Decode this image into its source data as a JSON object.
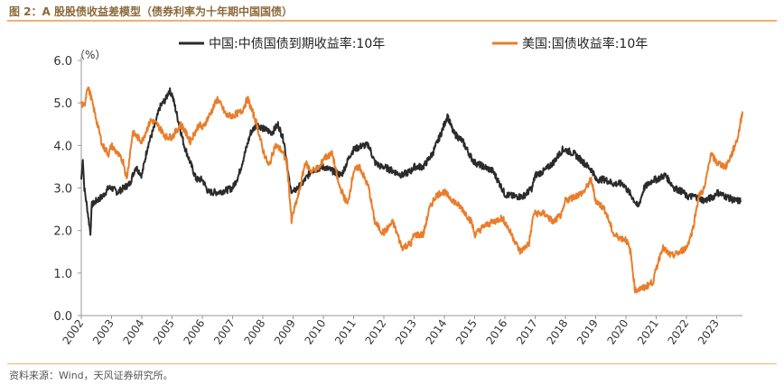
{
  "figure": {
    "title": "图 2：A 股股债收益差模型（债券利率为十年期中国国债）",
    "source": "资料来源：Wind，天风证券研究所。"
  },
  "chart_data": {
    "type": "line",
    "unit_label": "（%）",
    "ylim": [
      0,
      6
    ],
    "yticks": [
      "0.0",
      "1.0",
      "2.0",
      "3.0",
      "4.0",
      "5.0",
      "6.0"
    ],
    "xlim": [
      2002,
      2023.85
    ],
    "xticks": [
      "2002",
      "2003",
      "2004",
      "2005",
      "2006",
      "2007",
      "2008",
      "2009",
      "2010",
      "2011",
      "2012",
      "2013",
      "2014",
      "2015",
      "2016",
      "2017",
      "2018",
      "2019",
      "2020",
      "2021",
      "2022",
      "2023"
    ],
    "legend_position": "top",
    "grid": false,
    "series": [
      {
        "name": "中国:中债国债到期收益率:10年",
        "color": "#2b2b2b",
        "x": [
          2002.0,
          2002.05,
          2002.1,
          2002.2,
          2002.3,
          2002.35,
          2002.5,
          2002.7,
          2002.9,
          2003.0,
          2003.2,
          2003.4,
          2003.6,
          2003.8,
          2004.0,
          2004.2,
          2004.4,
          2004.6,
          2004.8,
          2004.9,
          2005.0,
          2005.2,
          2005.4,
          2005.6,
          2005.8,
          2006.0,
          2006.2,
          2006.5,
          2006.8,
          2007.0,
          2007.2,
          2007.4,
          2007.6,
          2007.8,
          2008.0,
          2008.3,
          2008.5,
          2008.7,
          2008.9,
          2009.0,
          2009.3,
          2009.6,
          2010.0,
          2010.3,
          2010.6,
          2010.9,
          2011.0,
          2011.3,
          2011.5,
          2011.7,
          2011.9,
          2012.0,
          2012.3,
          2012.6,
          2012.9,
          2013.0,
          2013.3,
          2013.6,
          2013.9,
          2014.0,
          2014.1,
          2014.3,
          2014.6,
          2014.9,
          2015.0,
          2015.3,
          2015.6,
          2015.9,
          2016.0,
          2016.3,
          2016.6,
          2016.9,
          2017.0,
          2017.3,
          2017.6,
          2017.9,
          2018.0,
          2018.3,
          2018.6,
          2018.9,
          2019.0,
          2019.3,
          2019.6,
          2019.9,
          2020.0,
          2020.2,
          2020.4,
          2020.6,
          2020.9,
          2021.0,
          2021.3,
          2021.6,
          2021.9,
          2022.0,
          2022.3,
          2022.6,
          2022.9,
          2023.0,
          2023.3,
          2023.6,
          2023.8
        ],
        "y": [
          3.2,
          3.7,
          3.0,
          2.5,
          1.95,
          2.6,
          2.7,
          2.8,
          3.0,
          3.0,
          2.9,
          3.0,
          3.1,
          3.5,
          3.3,
          4.0,
          4.4,
          4.9,
          5.1,
          5.3,
          5.2,
          4.6,
          4.0,
          3.6,
          3.2,
          3.2,
          2.9,
          2.9,
          2.95,
          3.0,
          3.3,
          3.8,
          4.3,
          4.5,
          4.4,
          4.3,
          4.5,
          4.1,
          3.0,
          2.9,
          3.1,
          3.4,
          3.5,
          3.4,
          3.3,
          3.8,
          3.9,
          4.0,
          4.0,
          3.6,
          3.5,
          3.5,
          3.4,
          3.3,
          3.4,
          3.5,
          3.5,
          3.8,
          4.3,
          4.5,
          4.7,
          4.3,
          4.1,
          3.7,
          3.6,
          3.5,
          3.4,
          3.0,
          2.85,
          2.8,
          2.8,
          3.0,
          3.3,
          3.4,
          3.6,
          3.9,
          3.9,
          3.8,
          3.6,
          3.4,
          3.2,
          3.2,
          3.1,
          3.1,
          3.0,
          2.8,
          2.55,
          3.0,
          3.2,
          3.2,
          3.3,
          3.0,
          2.9,
          2.8,
          2.8,
          2.7,
          2.8,
          2.9,
          2.8,
          2.7,
          2.7
        ]
      },
      {
        "name": "美国:国债收益率:10年",
        "color": "#e87e2c",
        "x": [
          2002.0,
          2002.1,
          2002.2,
          2002.3,
          2002.5,
          2002.7,
          2002.9,
          2003.0,
          2003.2,
          2003.4,
          2003.5,
          2003.7,
          2004.0,
          2004.3,
          2004.5,
          2004.8,
          2005.0,
          2005.3,
          2005.6,
          2005.9,
          2006.0,
          2006.3,
          2006.5,
          2006.8,
          2007.0,
          2007.3,
          2007.5,
          2007.8,
          2008.0,
          2008.2,
          2008.4,
          2008.6,
          2008.8,
          2008.95,
          2009.0,
          2009.2,
          2009.4,
          2009.6,
          2009.9,
          2010.0,
          2010.3,
          2010.5,
          2010.8,
          2011.0,
          2011.2,
          2011.5,
          2011.7,
          2011.9,
          2012.0,
          2012.3,
          2012.6,
          2012.9,
          2013.0,
          2013.3,
          2013.5,
          2013.7,
          2013.9,
          2014.0,
          2014.3,
          2014.6,
          2014.9,
          2015.0,
          2015.3,
          2015.6,
          2015.9,
          2016.0,
          2016.3,
          2016.5,
          2016.8,
          2016.95,
          2017.0,
          2017.3,
          2017.6,
          2017.9,
          2018.0,
          2018.3,
          2018.6,
          2018.85,
          2019.0,
          2019.3,
          2019.6,
          2019.9,
          2020.0,
          2020.15,
          2020.3,
          2020.6,
          2020.9,
          2021.0,
          2021.2,
          2021.5,
          2021.8,
          2022.0,
          2022.2,
          2022.4,
          2022.6,
          2022.8,
          2023.0,
          2023.3,
          2023.5,
          2023.7,
          2023.85
        ],
        "y": [
          5.0,
          4.9,
          5.4,
          5.2,
          4.6,
          4.0,
          3.8,
          4.0,
          3.8,
          3.6,
          3.2,
          4.3,
          4.1,
          4.6,
          4.5,
          4.2,
          4.2,
          4.5,
          4.1,
          4.5,
          4.4,
          4.8,
          5.1,
          4.7,
          4.7,
          4.8,
          5.1,
          4.5,
          3.9,
          3.5,
          4.0,
          3.9,
          3.6,
          2.2,
          2.4,
          2.9,
          3.6,
          3.4,
          3.5,
          3.7,
          3.8,
          3.1,
          2.6,
          3.4,
          3.5,
          3.0,
          2.2,
          2.0,
          1.95,
          2.2,
          1.6,
          1.7,
          1.9,
          1.9,
          2.5,
          2.8,
          2.9,
          2.9,
          2.7,
          2.5,
          2.2,
          1.9,
          2.1,
          2.2,
          2.3,
          2.2,
          1.8,
          1.5,
          1.7,
          2.4,
          2.4,
          2.4,
          2.2,
          2.4,
          2.7,
          2.8,
          2.9,
          3.2,
          2.7,
          2.5,
          1.9,
          1.8,
          1.8,
          1.5,
          0.6,
          0.65,
          0.8,
          1.1,
          1.6,
          1.4,
          1.5,
          1.6,
          2.0,
          2.8,
          3.0,
          3.8,
          3.6,
          3.5,
          3.8,
          4.2,
          4.8
        ]
      }
    ]
  }
}
